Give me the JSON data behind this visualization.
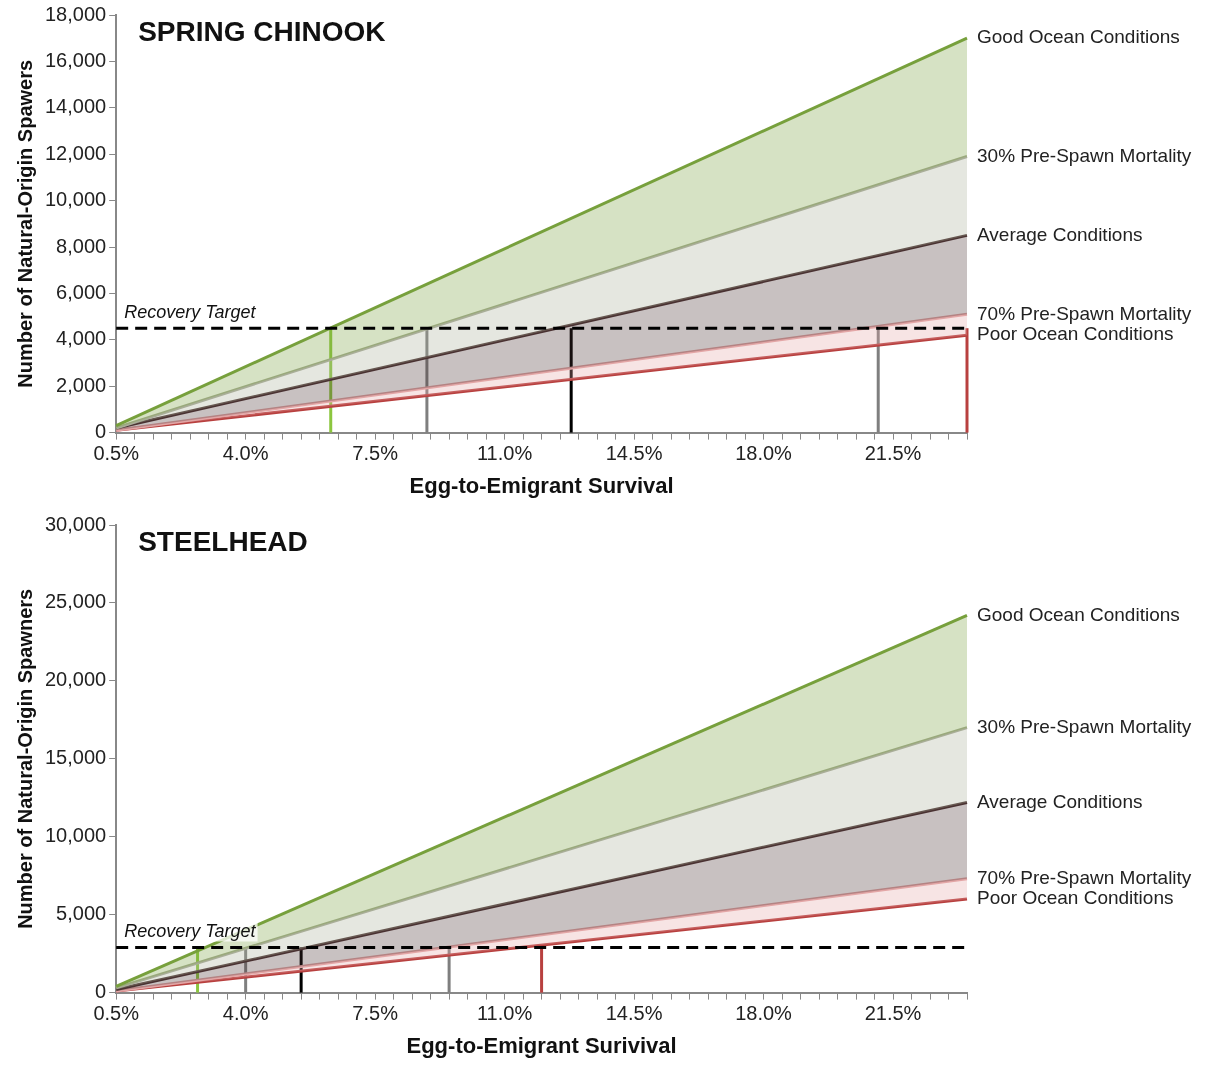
{
  "chart_data": [
    {
      "type": "area",
      "title": "SPRING CHINOOK",
      "xlabel": "Egg-to-Emigrant Survival",
      "ylabel": "Number of Natural-Origin Spawers",
      "xlim": [
        0.5,
        23.5
      ],
      "xticks": [
        {
          "value": 0.5,
          "label": "0.5%"
        },
        {
          "value": 1,
          "label": null
        },
        {
          "value": 1.5,
          "label": null
        },
        {
          "value": 2,
          "label": null
        },
        {
          "value": 2.5,
          "label": null
        },
        {
          "value": 3,
          "label": null
        },
        {
          "value": 3.5,
          "label": null
        },
        {
          "value": 4,
          "label": "4.0%"
        },
        {
          "value": 4.5,
          "label": null
        },
        {
          "value": 5,
          "label": null
        },
        {
          "value": 5.5,
          "label": null
        },
        {
          "value": 6,
          "label": null
        },
        {
          "value": 6.5,
          "label": null
        },
        {
          "value": 7,
          "label": null
        },
        {
          "value": 7.5,
          "label": "7.5%"
        },
        {
          "value": 8,
          "label": null
        },
        {
          "value": 8.5,
          "label": null
        },
        {
          "value": 9,
          "label": null
        },
        {
          "value": 9.5,
          "label": null
        },
        {
          "value": 10,
          "label": null
        },
        {
          "value": 10.5,
          "label": null
        },
        {
          "value": 11,
          "label": "11.0%"
        },
        {
          "value": 11.5,
          "label": null
        },
        {
          "value": 12,
          "label": null
        },
        {
          "value": 12.5,
          "label": null
        },
        {
          "value": 13,
          "label": null
        },
        {
          "value": 13.5,
          "label": null
        },
        {
          "value": 14,
          "label": null
        },
        {
          "value": 14.5,
          "label": "14.5%"
        },
        {
          "value": 15,
          "label": null
        },
        {
          "value": 15.5,
          "label": null
        },
        {
          "value": 16,
          "label": null
        },
        {
          "value": 16.5,
          "label": null
        },
        {
          "value": 17,
          "label": null
        },
        {
          "value": 17.5,
          "label": null
        },
        {
          "value": 18,
          "label": "18.0%"
        },
        {
          "value": 18.5,
          "label": null
        },
        {
          "value": 19,
          "label": null
        },
        {
          "value": 19.5,
          "label": null
        },
        {
          "value": 20,
          "label": null
        },
        {
          "value": 20.5,
          "label": null
        },
        {
          "value": 21,
          "label": null
        },
        {
          "value": 21.5,
          "label": "21.5%"
        },
        {
          "value": 22,
          "label": null
        },
        {
          "value": 22.5,
          "label": null
        },
        {
          "value": 23,
          "label": null
        },
        {
          "value": 23.5,
          "label": null
        }
      ],
      "ylim": [
        0,
        18000
      ],
      "yticks": [
        0,
        {
          "value": 2000,
          "label": "2,000"
        },
        {
          "value": 4000,
          "label": "4,000"
        },
        {
          "value": 6000,
          "label": "6,000"
        },
        {
          "value": 8000,
          "label": "8,000"
        },
        {
          "value": 10000,
          "label": "10,000"
        },
        {
          "value": 12000,
          "label": "12,000"
        },
        {
          "value": 14000,
          "label": "14,000"
        },
        {
          "value": 16000,
          "label": "16,000"
        },
        {
          "value": 18000,
          "label": "18,000"
        }
      ],
      "series": [
        {
          "name": "Good Ocean Conditions",
          "color": "#77a03c",
          "x": [
            0.5,
            23.5
          ],
          "values": [
            300,
            17000
          ]
        },
        {
          "name": "30% Pre-Spawn Mortality",
          "color": "#a9ae98",
          "x": [
            0.5,
            23.5
          ],
          "values": [
            200,
            11900
          ]
        },
        {
          "name": "Average Conditions",
          "color": "#4a3232",
          "x": [
            0.5,
            23.5
          ],
          "values": [
            200,
            8500
          ]
        },
        {
          "name": "70% Pre-Spawn Mortality",
          "color": "#e3a6a6",
          "x": [
            0.5,
            23.5
          ],
          "values": [
            100,
            5100
          ]
        },
        {
          "name": "Poor Ocean Conditions",
          "type": "line",
          "color": "#b8403f",
          "x": [
            0.5,
            23.5
          ],
          "values": [
            100,
            4200
          ]
        },
        {
          "type": "line",
          "color": "#8cc63f",
          "x": [
            6.3,
            6.3
          ],
          "values": [
            0,
            4500
          ]
        },
        {
          "type": "line",
          "color": "#7f7f7f",
          "x": [
            8.9,
            8.9
          ],
          "values": [
            0,
            4500
          ]
        },
        {
          "type": "line",
          "color": "#000000",
          "x": [
            12.8,
            12.8
          ],
          "values": [
            0,
            4500
          ]
        },
        {
          "type": "line",
          "color": "#7f7f7f",
          "x": [
            21.1,
            21.1
          ],
          "values": [
            0,
            4500
          ]
        },
        {
          "type": "line",
          "color": "#b8403f",
          "x": [
            23.5,
            23.5
          ],
          "values": [
            0,
            4500
          ]
        }
      ],
      "ref_lines": [
        {
          "axis": "y",
          "value": 4500,
          "label": "Recovery Target",
          "color": "#000000",
          "line_style": "dashed"
        }
      ],
      "grid": false,
      "legend": false,
      "marker": "none"
    },
    {
      "type": "area",
      "title": "STEELHEAD",
      "xlabel": "Egg-to-Emigrant Surivival",
      "ylabel": "Number of Natural-Origin Spawners",
      "xlim": [
        0.5,
        23.5
      ],
      "xticks": [
        {
          "value": 0.5,
          "label": "0.5%"
        },
        {
          "value": 1,
          "label": null
        },
        {
          "value": 1.5,
          "label": null
        },
        {
          "value": 2,
          "label": null
        },
        {
          "value": 2.5,
          "label": null
        },
        {
          "value": 3,
          "label": null
        },
        {
          "value": 3.5,
          "label": null
        },
        {
          "value": 4,
          "label": "4.0%"
        },
        {
          "value": 4.5,
          "label": null
        },
        {
          "value": 5,
          "label": null
        },
        {
          "value": 5.5,
          "label": null
        },
        {
          "value": 6,
          "label": null
        },
        {
          "value": 6.5,
          "label": null
        },
        {
          "value": 7,
          "label": null
        },
        {
          "value": 7.5,
          "label": "7.5%"
        },
        {
          "value": 8,
          "label": null
        },
        {
          "value": 8.5,
          "label": null
        },
        {
          "value": 9,
          "label": null
        },
        {
          "value": 9.5,
          "label": null
        },
        {
          "value": 10,
          "label": null
        },
        {
          "value": 10.5,
          "label": null
        },
        {
          "value": 11,
          "label": "11.0%"
        },
        {
          "value": 11.5,
          "label": null
        },
        {
          "value": 12,
          "label": null
        },
        {
          "value": 12.5,
          "label": null
        },
        {
          "value": 13,
          "label": null
        },
        {
          "value": 13.5,
          "label": null
        },
        {
          "value": 14,
          "label": null
        },
        {
          "value": 14.5,
          "label": "14.5%"
        },
        {
          "value": 15,
          "label": null
        },
        {
          "value": 15.5,
          "label": null
        },
        {
          "value": 16,
          "label": null
        },
        {
          "value": 16.5,
          "label": null
        },
        {
          "value": 17,
          "label": null
        },
        {
          "value": 17.5,
          "label": null
        },
        {
          "value": 18,
          "label": "18.0%"
        },
        {
          "value": 18.5,
          "label": null
        },
        {
          "value": 19,
          "label": null
        },
        {
          "value": 19.5,
          "label": null
        },
        {
          "value": 20,
          "label": null
        },
        {
          "value": 20.5,
          "label": null
        },
        {
          "value": 21,
          "label": null
        },
        {
          "value": 21.5,
          "label": "21.5%"
        },
        {
          "value": 22,
          "label": null
        },
        {
          "value": 22.5,
          "label": null
        },
        {
          "value": 23,
          "label": null
        },
        {
          "value": 23.5,
          "label": null
        }
      ],
      "ylim": [
        0,
        30000
      ],
      "yticks": [
        0,
        {
          "value": 5000,
          "label": "5,000"
        },
        {
          "value": 10000,
          "label": "10,000"
        },
        {
          "value": 15000,
          "label": "15,000"
        },
        {
          "value": 20000,
          "label": "20,000"
        },
        {
          "value": 25000,
          "label": "25,000"
        },
        {
          "value": 30000,
          "label": "30,000"
        }
      ],
      "series": [
        {
          "name": "Good Ocean Conditions",
          "color": "#77a03c",
          "x": [
            0.5,
            23.5
          ],
          "values": [
            400,
            24200
          ]
        },
        {
          "name": "30% Pre-Spawn Mortality",
          "color": "#a9ae98",
          "x": [
            0.5,
            23.5
          ],
          "values": [
            300,
            17000
          ]
        },
        {
          "name": "Average Conditions",
          "color": "#4a3232",
          "x": [
            0.5,
            23.5
          ],
          "values": [
            200,
            12200
          ]
        },
        {
          "name": "70% Pre-Spawn Mortality",
          "color": "#e3a6a6",
          "x": [
            0.5,
            23.5
          ],
          "values": [
            100,
            7300
          ]
        },
        {
          "name": "Poor Ocean Conditions",
          "type": "line",
          "color": "#b8403f",
          "x": [
            0.5,
            23.5
          ],
          "values": [
            100,
            6000
          ]
        },
        {
          "type": "line",
          "color": "#8cc63f",
          "x": [
            2.7,
            2.7
          ],
          "values": [
            0,
            2900
          ]
        },
        {
          "type": "line",
          "color": "#7f7f7f",
          "x": [
            4.0,
            4.0
          ],
          "values": [
            0,
            2900
          ]
        },
        {
          "type": "line",
          "color": "#000000",
          "x": [
            5.5,
            5.5
          ],
          "values": [
            0,
            2900
          ]
        },
        {
          "type": "line",
          "color": "#7f7f7f",
          "x": [
            9.5,
            9.5
          ],
          "values": [
            0,
            2900
          ]
        },
        {
          "type": "line",
          "color": "#b8403f",
          "x": [
            12.0,
            12.0
          ],
          "values": [
            0,
            2900
          ]
        }
      ],
      "ref_lines": [
        {
          "axis": "y",
          "value": 2900,
          "label": "Recovery Target",
          "color": "#000000",
          "line_style": "dashed"
        }
      ],
      "grid": false,
      "legend": false,
      "marker": "none"
    }
  ]
}
